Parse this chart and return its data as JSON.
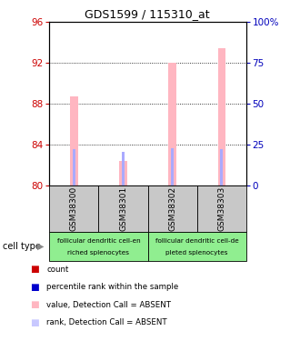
{
  "title": "GDS1599 / 115310_at",
  "samples": [
    "GSM38300",
    "GSM38301",
    "GSM38302",
    "GSM38303"
  ],
  "ylim_left": [
    80,
    96
  ],
  "ylim_right": [
    0,
    100
  ],
  "yticks_left": [
    80,
    84,
    88,
    92,
    96
  ],
  "yticks_right": [
    0,
    25,
    50,
    75,
    100
  ],
  "pink_bar_tops": [
    88.7,
    82.4,
    92.0,
    93.5
  ],
  "blue_bar_tops": [
    83.6,
    83.3,
    83.7,
    83.6
  ],
  "bar_bottom": 80,
  "pink_bar_width": 0.15,
  "blue_bar_width": 0.05,
  "sample_box_color": "#C8C8C8",
  "cell_green": "#90EE90",
  "grid_yticks": [
    84,
    88,
    92
  ],
  "left_ytick_color": "#CC0000",
  "right_ytick_color": "#0000BB",
  "legend_items": [
    {
      "color": "#CC0000",
      "label": "count"
    },
    {
      "color": "#0000CC",
      "label": "percentile rank within the sample"
    },
    {
      "color": "#FFB6C1",
      "label": "value, Detection Call = ABSENT"
    },
    {
      "color": "#C8C8FF",
      "label": "rank, Detection Call = ABSENT"
    }
  ],
  "cell_groups": [
    {
      "label1": "follicular dendritic cell-en",
      "label2": "riched splenocytes",
      "cols": [
        0,
        1
      ]
    },
    {
      "label1": "follicular dendritic cell-de",
      "label2": "pleted splenocytes",
      "cols": [
        2,
        3
      ]
    }
  ]
}
